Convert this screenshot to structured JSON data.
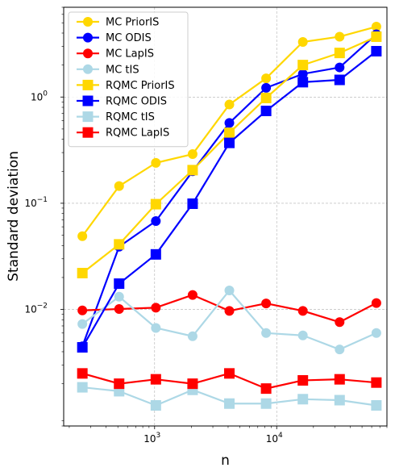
{
  "chart_data": {
    "type": "line",
    "xscale": "log",
    "yscale": "log",
    "xlabel": "n",
    "ylabel": "Standard deviation",
    "xlim": [
      180,
      80000
    ],
    "ylim": [
      0.0008,
      7
    ],
    "grid": true,
    "legend_position": "top-left",
    "x": [
      256,
      512,
      1024,
      2048,
      4096,
      8192,
      16384,
      32768,
      65536
    ],
    "x_ticks": [
      {
        "value": 1000,
        "base": "10",
        "exp": "3"
      },
      {
        "value": 10000,
        "base": "10",
        "exp": "4"
      }
    ],
    "y_ticks": [
      {
        "value": 0.01,
        "base": "10",
        "exp": "−2"
      },
      {
        "value": 0.1,
        "base": "10",
        "exp": "−1"
      },
      {
        "value": 1,
        "base": "10",
        "exp": "0"
      }
    ],
    "series": [
      {
        "name": "MC PriorIS",
        "color": "#FFD700",
        "marker": "circle",
        "values": [
          0.049,
          0.145,
          0.24,
          0.29,
          0.85,
          1.5,
          3.3,
          3.7,
          4.6
        ]
      },
      {
        "name": "MC ODIS",
        "color": "#0000FF",
        "marker": "circle",
        "values": [
          0.0045,
          0.039,
          0.068,
          0.2,
          0.57,
          1.22,
          1.65,
          1.9,
          3.9
        ]
      },
      {
        "name": "MC LapIS",
        "color": "#FF0000",
        "marker": "circle",
        "values": [
          0.0098,
          0.0101,
          0.0104,
          0.0137,
          0.0097,
          0.0114,
          0.0097,
          0.0076,
          0.0115
        ]
      },
      {
        "name": "MC tIS",
        "color": "#ADD8E6",
        "marker": "circle",
        "values": [
          0.0073,
          0.0132,
          0.0067,
          0.0056,
          0.0151,
          0.006,
          0.0057,
          0.0042,
          0.006
        ]
      },
      {
        "name": "RQMC PriorIS",
        "color": "#FFD700",
        "marker": "square",
        "values": [
          0.022,
          0.041,
          0.098,
          0.205,
          0.46,
          0.98,
          2.0,
          2.6,
          3.7
        ]
      },
      {
        "name": "RQMC ODIS",
        "color": "#0000FF",
        "marker": "square",
        "values": [
          0.0044,
          0.0175,
          0.033,
          0.099,
          0.37,
          0.74,
          1.38,
          1.45,
          2.7
        ]
      },
      {
        "name": "RQMC tIS",
        "color": "#ADD8E6",
        "marker": "square",
        "values": [
          0.00185,
          0.0017,
          0.00125,
          0.00175,
          0.0013,
          0.0013,
          0.00143,
          0.0014,
          0.00125
        ]
      },
      {
        "name": "RQMC LapIS",
        "color": "#FF0000",
        "marker": "square",
        "values": [
          0.0025,
          0.002,
          0.0022,
          0.002,
          0.0025,
          0.0018,
          0.00215,
          0.0022,
          0.00205
        ]
      }
    ]
  }
}
